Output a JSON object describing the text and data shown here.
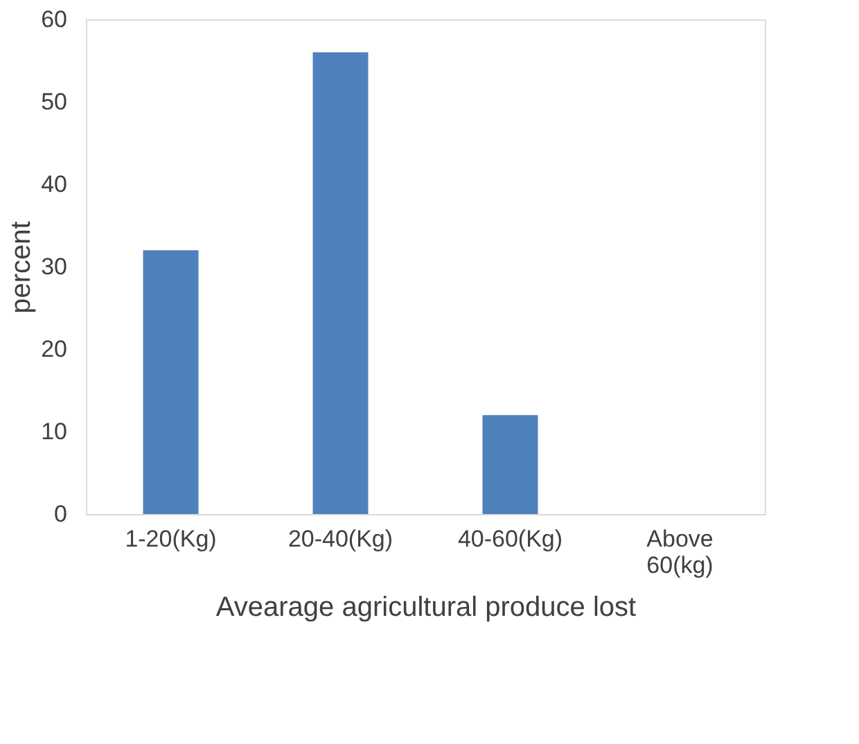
{
  "chart_data": {
    "type": "bar",
    "categories": [
      "1-20(Kg)",
      "20-40(Kg)",
      "40-60(Kg)",
      "Above 60(kg)"
    ],
    "values": [
      32,
      56,
      12,
      0
    ],
    "color": "#4f81bd",
    "xlabel": "Avearage agricultural produce lost",
    "ylabel": "percent",
    "ylim": [
      0,
      60
    ],
    "yticks": [
      0,
      10,
      20,
      30,
      40,
      50,
      60
    ],
    "grid": false
  }
}
